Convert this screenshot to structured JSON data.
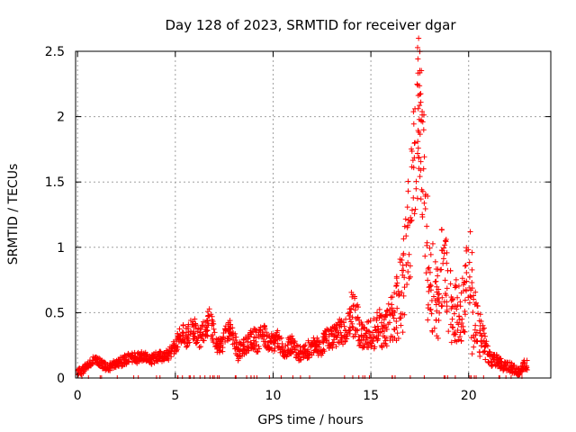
{
  "chart_data": {
    "type": "scatter",
    "title": "Day 128 of 2023, SRMTID for receiver dgar",
    "xlabel": "GPS time / hours",
    "ylabel": "SRMTID / TECUs",
    "xlim": [
      -0.1,
      24.2
    ],
    "ylim": [
      0,
      2.5
    ],
    "xticks": [
      0,
      5,
      10,
      15,
      20
    ],
    "xtick_labels": [
      "0",
      "5",
      "10",
      "15",
      "20"
    ],
    "yticks": [
      0,
      0.5,
      1,
      1.5,
      2,
      2.5
    ],
    "ytick_labels": [
      "0",
      "0.5",
      "1",
      "1.5",
      "2",
      "2.5"
    ],
    "grid": true,
    "marker": "+",
    "series_color": "#ff0000",
    "series": [
      {
        "name": "SRMTID",
        "x": [
          0.0,
          0.2,
          0.4,
          0.6,
          0.8,
          1.0,
          1.2,
          1.4,
          1.6,
          1.8,
          2.0,
          2.2,
          2.4,
          2.6,
          2.8,
          3.0,
          3.2,
          3.4,
          3.6,
          3.8,
          4.0,
          4.2,
          4.4,
          4.6,
          4.8,
          5.0,
          5.2,
          5.4,
          5.6,
          5.8,
          6.0,
          6.2,
          6.4,
          6.6,
          6.8,
          7.0,
          7.2,
          7.4,
          7.6,
          7.8,
          8.0,
          8.2,
          8.4,
          8.6,
          8.8,
          9.0,
          9.2,
          9.4,
          9.6,
          9.8,
          10.0,
          10.2,
          10.4,
          10.6,
          10.8,
          11.0,
          11.2,
          11.4,
          11.6,
          11.8,
          12.0,
          12.2,
          12.4,
          12.6,
          12.8,
          13.0,
          13.2,
          13.4,
          13.6,
          13.8,
          14.0,
          14.2,
          14.4,
          14.6,
          14.8,
          15.0,
          15.2,
          15.4,
          15.6,
          15.8,
          16.0,
          16.2,
          16.4,
          16.6,
          16.8,
          17.0,
          17.2,
          17.4,
          17.5,
          17.6,
          17.8,
          18.0,
          18.2,
          18.4,
          18.6,
          18.8,
          19.0,
          19.2,
          19.4,
          19.6,
          19.8,
          20.0,
          20.2,
          20.4,
          20.6,
          20.8,
          21.0,
          21.2,
          21.4,
          21.6,
          21.8,
          22.0,
          22.2,
          22.4,
          22.6,
          22.8
        ],
        "y": [
          0.05,
          0.05,
          0.08,
          0.11,
          0.14,
          0.14,
          0.11,
          0.09,
          0.08,
          0.1,
          0.11,
          0.12,
          0.14,
          0.15,
          0.16,
          0.15,
          0.16,
          0.17,
          0.15,
          0.14,
          0.16,
          0.17,
          0.15,
          0.18,
          0.2,
          0.26,
          0.3,
          0.35,
          0.31,
          0.37,
          0.38,
          0.29,
          0.35,
          0.4,
          0.45,
          0.3,
          0.26,
          0.24,
          0.35,
          0.38,
          0.3,
          0.2,
          0.23,
          0.25,
          0.28,
          0.3,
          0.27,
          0.33,
          0.32,
          0.28,
          0.26,
          0.3,
          0.25,
          0.22,
          0.24,
          0.26,
          0.2,
          0.18,
          0.2,
          0.22,
          0.24,
          0.26,
          0.22,
          0.28,
          0.3,
          0.3,
          0.32,
          0.36,
          0.32,
          0.38,
          0.48,
          0.5,
          0.35,
          0.3,
          0.34,
          0.38,
          0.36,
          0.42,
          0.36,
          0.4,
          0.45,
          0.5,
          0.55,
          0.7,
          1.0,
          1.25,
          1.55,
          2.0,
          2.17,
          1.8,
          1.2,
          0.7,
          0.7,
          0.55,
          0.8,
          0.9,
          0.6,
          0.55,
          0.5,
          0.45,
          0.6,
          0.9,
          0.5,
          0.4,
          0.35,
          0.25,
          0.15,
          0.13,
          0.14,
          0.12,
          0.1,
          0.08,
          0.08,
          0.06,
          0.04,
          0.1
        ],
        "spread": [
          0.03,
          0.03,
          0.03,
          0.03,
          0.03,
          0.03,
          0.03,
          0.03,
          0.03,
          0.03,
          0.03,
          0.04,
          0.04,
          0.04,
          0.04,
          0.04,
          0.04,
          0.04,
          0.04,
          0.04,
          0.04,
          0.04,
          0.04,
          0.05,
          0.06,
          0.07,
          0.08,
          0.09,
          0.08,
          0.09,
          0.09,
          0.08,
          0.09,
          0.1,
          0.11,
          0.08,
          0.07,
          0.07,
          0.08,
          0.08,
          0.07,
          0.07,
          0.07,
          0.07,
          0.08,
          0.09,
          0.08,
          0.08,
          0.08,
          0.08,
          0.07,
          0.07,
          0.07,
          0.07,
          0.07,
          0.07,
          0.06,
          0.06,
          0.07,
          0.07,
          0.07,
          0.07,
          0.07,
          0.08,
          0.09,
          0.09,
          0.1,
          0.1,
          0.1,
          0.12,
          0.18,
          0.2,
          0.12,
          0.1,
          0.12,
          0.14,
          0.12,
          0.15,
          0.14,
          0.16,
          0.2,
          0.25,
          0.3,
          0.45,
          0.5,
          0.55,
          0.6,
          0.65,
          0.6,
          0.55,
          0.5,
          0.35,
          0.3,
          0.3,
          0.35,
          0.4,
          0.3,
          0.25,
          0.25,
          0.25,
          0.3,
          0.45,
          0.25,
          0.2,
          0.15,
          0.1,
          0.06,
          0.05,
          0.05,
          0.05,
          0.04,
          0.04,
          0.04,
          0.03,
          0.03,
          0.04
        ]
      }
    ]
  }
}
